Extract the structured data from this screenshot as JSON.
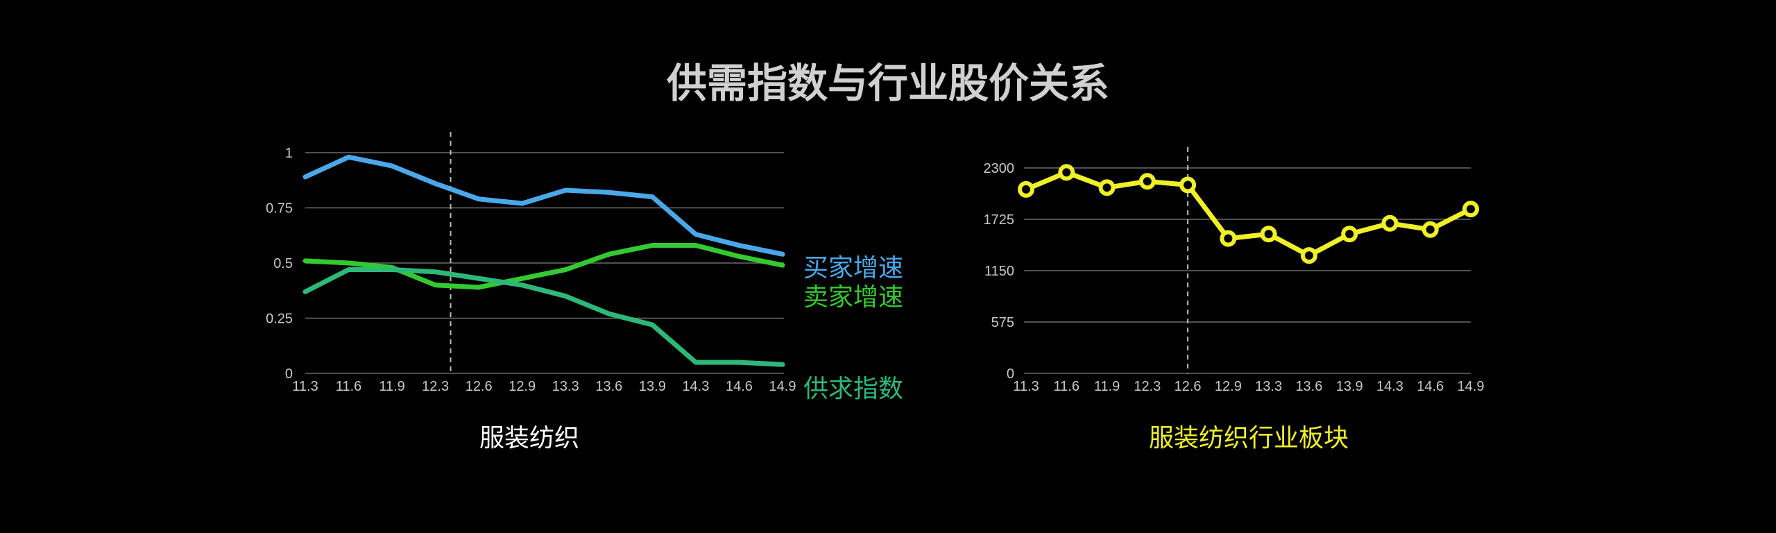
{
  "page": {
    "title": "供需指数与行业股价关系",
    "background": "#000000"
  },
  "chart_data": [
    {
      "type": "line",
      "title": "服装纺织",
      "categories": [
        "11.3",
        "11.6",
        "11.9",
        "12.3",
        "12.6",
        "12.9",
        "13.3",
        "13.6",
        "13.9",
        "14.3",
        "14.6",
        "14.9"
      ],
      "y_ticks": [
        "0",
        "0.25",
        "0.5",
        "0.75",
        "1"
      ],
      "ylim": [
        0,
        1
      ],
      "grid": true,
      "marker_between": [
        "11.9",
        "12.3",
        "12.6"
      ],
      "dashed_marker_after": "12.3",
      "series": [
        {
          "name": "买家增速",
          "color": "#4aa8e8",
          "values": [
            0.89,
            0.98,
            0.94,
            0.86,
            0.79,
            0.77,
            0.83,
            0.82,
            0.8,
            0.63,
            0.58,
            0.54
          ]
        },
        {
          "name": "卖家增速",
          "color": "#34c931",
          "values": [
            0.51,
            0.5,
            0.48,
            0.4,
            0.39,
            0.43,
            0.47,
            0.54,
            0.58,
            0.58,
            0.53,
            0.49
          ]
        },
        {
          "name": "供求指数",
          "color": "#2db87a",
          "values": [
            0.37,
            0.47,
            0.47,
            0.46,
            0.43,
            0.4,
            0.35,
            0.27,
            0.22,
            0.05,
            0.05,
            0.04
          ]
        }
      ]
    },
    {
      "type": "line",
      "title": "服装纺织行业板块",
      "categories": [
        "11.3",
        "11.6",
        "11.9",
        "12.3",
        "12.6",
        "12.9",
        "13.3",
        "13.6",
        "13.9",
        "14.3",
        "14.6",
        "14.9"
      ],
      "y_ticks": [
        "0",
        "575",
        "1150",
        "1725",
        "2300"
      ],
      "ylim": [
        0,
        2300
      ],
      "grid": true,
      "dashed_marker_at": "12.6",
      "series": [
        {
          "color": "#f0f028",
          "values": [
            2060,
            2250,
            2080,
            2150,
            2110,
            1510,
            1560,
            1320,
            1560,
            1680,
            1610,
            1840
          ]
        }
      ]
    }
  ]
}
